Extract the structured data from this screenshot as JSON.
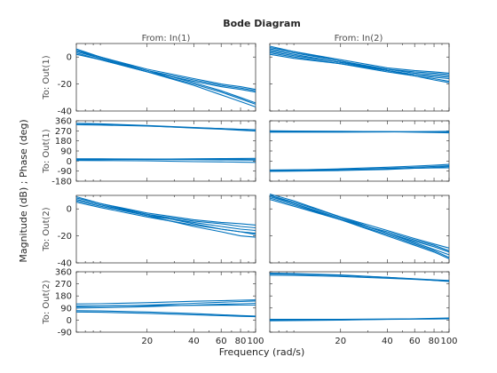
{
  "chart_data": {
    "type": "line",
    "title": "Bode Diagram",
    "xlabel": "Frequency  (rad/s)",
    "ylabel": "Magnitude (dB) ; Phase (deg)",
    "x_scale": "log",
    "xlim": [
      7,
      100
    ],
    "x_ticks": [
      20,
      40,
      60,
      80,
      100
    ],
    "x_tick_labels": [
      "20",
      "40",
      "60",
      "80",
      "100"
    ],
    "column_titles": [
      "From: In(1)",
      "From: In(2)"
    ],
    "row_titles": [
      "To: Out(1)",
      "To: Out(1)",
      "To: Out(2)",
      "To: Out(2)"
    ],
    "line_color": "#0072bd",
    "rows": [
      {
        "kind": "magnitude",
        "ylim": [
          -40,
          10
        ],
        "y_ticks": [
          0,
          -20,
          -40
        ],
        "y_tick_labels": [
          "0",
          "-20",
          "-40"
        ],
        "panels": [
          {
            "x": [
              7,
              10,
              20,
              40,
              60,
              80,
              100
            ],
            "series": [
              {
                "values": [
                  5,
                  0,
                  -9,
                  -16,
                  -20,
                  -22,
                  -24
                ]
              },
              {
                "values": [
                  4,
                  -1,
                  -10,
                  -17,
                  -21,
                  -23,
                  -25
                ]
              },
              {
                "values": [
                  6,
                  0,
                  -10,
                  -19,
                  -25,
                  -30,
                  -34
                ]
              },
              {
                "values": [
                  3,
                  -2,
                  -11,
                  -20,
                  -26,
                  -31,
                  -35
                ]
              },
              {
                "values": [
                  5,
                  -1,
                  -11,
                  -21,
                  -28,
                  -33,
                  -37
                ]
              },
              {
                "values": [
                  2,
                  -2,
                  -11,
                  -18,
                  -22,
                  -24,
                  -26
                ]
              }
            ]
          },
          {
            "x": [
              7,
              10,
              20,
              40,
              60,
              80,
              100
            ],
            "series": [
              {
                "values": [
                  7,
                  4,
                  -2,
                  -8,
                  -10,
                  -11,
                  -12
                ]
              },
              {
                "values": [
                  6,
                  3,
                  -3,
                  -9,
                  -11,
                  -12,
                  -13
                ]
              },
              {
                "values": [
                  5,
                  2,
                  -4,
                  -9,
                  -12,
                  -13,
                  -14
                ]
              },
              {
                "values": [
                  4,
                  1,
                  -4,
                  -10,
                  -13,
                  -15,
                  -16
                ]
              },
              {
                "values": [
                  3,
                  0,
                  -5,
                  -11,
                  -14,
                  -16,
                  -18
                ]
              },
              {
                "values": [
                  8,
                  4,
                  -3,
                  -10,
                  -14,
                  -17,
                  -19
                ]
              },
              {
                "values": [
                  2,
                  -1,
                  -5,
                  -10,
                  -13,
                  -14,
                  -15
                ]
              }
            ]
          }
        ]
      },
      {
        "kind": "phase",
        "ylim": [
          -180,
          360
        ],
        "y_ticks": [
          360,
          270,
          180,
          90,
          0,
          -90,
          -180
        ],
        "y_tick_labels": [
          "360",
          "270",
          "180",
          "90",
          "0",
          "-90",
          "-180"
        ],
        "panels": [
          {
            "x": [
              7,
              10,
              20,
              40,
              60,
              80,
              100
            ],
            "series": [
              {
                "values": [
                  335,
                  330,
                  315,
                  295,
                  285,
                  275,
                  268
                ]
              },
              {
                "values": [
                  325,
                  322,
                  312,
                  298,
                  290,
                  284,
                  280
                ]
              },
              {
                "values": [
                  338,
                  333,
                  318,
                  300,
                  290,
                  283,
                  278
                ]
              },
              {
                "values": [
                  20,
                  20,
                  18,
                  16,
                  15,
                  14,
                  13
                ]
              },
              {
                "values": [
                  10,
                  12,
                  16,
                  20,
                  22,
                  23,
                  24
                ]
              },
              {
                "values": [
                  5,
                  4,
                  2,
                  -5,
                  -8,
                  -10,
                  -12
                ]
              },
              {
                "values": [
                  15,
                  15,
                  14,
                  12,
                  10,
                  9,
                  8
                ]
              }
            ]
          },
          {
            "x": [
              7,
              10,
              20,
              40,
              60,
              80,
              100
            ],
            "series": [
              {
                "values": [
                  265,
                  265,
                  264,
                  263,
                  262,
                  262,
                  262
                ]
              },
              {
                "values": [
                  258,
                  258,
                  258,
                  260,
                  262,
                  264,
                  266
                ]
              },
              {
                "values": [
                  270,
                  269,
                  266,
                  262,
                  258,
                  255,
                  252
                ]
              },
              {
                "values": [
                  -85,
                  -80,
                  -70,
                  -55,
                  -45,
                  -38,
                  -30
                ]
              },
              {
                "values": [
                  -90,
                  -88,
                  -80,
                  -65,
                  -55,
                  -48,
                  -42
                ]
              },
              {
                "values": [
                  -92,
                  -90,
                  -85,
                  -75,
                  -65,
                  -58,
                  -50
                ]
              },
              {
                "values": [
                  -80,
                  -78,
                  -75,
                  -70,
                  -65,
                  -62,
                  -60
                ]
              }
            ]
          }
        ]
      },
      {
        "kind": "magnitude",
        "ylim": [
          -40,
          10
        ],
        "y_ticks": [
          0,
          -20,
          -40
        ],
        "y_tick_labels": [
          "0",
          "-20",
          "-40"
        ],
        "panels": [
          {
            "x": [
              7,
              10,
              20,
              40,
              60,
              80,
              100
            ],
            "series": [
              {
                "values": [
                  8,
                  4,
                  -3,
                  -8,
                  -10,
                  -11,
                  -12
                ]
              },
              {
                "values": [
                  7,
                  3,
                  -4,
                  -9,
                  -11,
                  -13,
                  -14
                ]
              },
              {
                "values": [
                  6,
                  2,
                  -5,
                  -10,
                  -13,
                  -15,
                  -16
                ]
              },
              {
                "values": [
                  9,
                  4,
                  -4,
                  -11,
                  -15,
                  -17,
                  -19
                ]
              },
              {
                "values": [
                  5,
                  1,
                  -6,
                  -12,
                  -15,
                  -17,
                  -18
                ]
              },
              {
                "values": [
                  7,
                  3,
                  -5,
                  -13,
                  -17,
                  -20,
                  -21
                ]
              }
            ]
          },
          {
            "x": [
              7,
              10,
              20,
              40,
              60,
              80,
              100
            ],
            "series": [
              {
                "values": [
                  10,
                  5,
                  -6,
                  -16,
                  -22,
                  -26,
                  -29
                ]
              },
              {
                "values": [
                  9,
                  4,
                  -7,
                  -18,
                  -24,
                  -28,
                  -32
                ]
              },
              {
                "values": [
                  11,
                  6,
                  -6,
                  -18,
                  -25,
                  -30,
                  -34
                ]
              },
              {
                "values": [
                  8,
                  3,
                  -8,
                  -19,
                  -26,
                  -31,
                  -36
                ]
              },
              {
                "values": [
                  7,
                  2,
                  -8,
                  -17,
                  -23,
                  -27,
                  -31
                ]
              },
              {
                "values": [
                  10,
                  4,
                  -8,
                  -20,
                  -27,
                  -32,
                  -37
                ]
              }
            ]
          }
        ]
      },
      {
        "kind": "phase",
        "ylim": [
          -90,
          360
        ],
        "y_ticks": [
          360,
          270,
          180,
          90,
          0,
          -90
        ],
        "y_tick_labels": [
          "360",
          "270",
          "180",
          "90",
          "0",
          "-90"
        ],
        "panels": [
          {
            "x": [
              7,
              10,
              20,
              40,
              60,
              80,
              100
            ],
            "series": [
              {
                "values": [
                  120,
                  122,
                  130,
                  140,
                  145,
                  148,
                  150
                ]
              },
              {
                "values": [
                  100,
                  103,
                  112,
                  125,
                  133,
                  138,
                  142
                ]
              },
              {
                "values": [
                  90,
                  92,
                  100,
                  112,
                  118,
                  122,
                  125
                ]
              },
              {
                "values": [
                  105,
                  106,
                  108,
                  110,
                  111,
                  112,
                  112
                ]
              },
              {
                "values": [
                  60,
                  58,
                  50,
                  40,
                  33,
                  28,
                  25
                ]
              },
              {
                "values": [
                  70,
                  68,
                  60,
                  48,
                  40,
                  34,
                  30
                ]
              }
            ]
          },
          {
            "x": [
              7,
              10,
              20,
              40,
              60,
              80,
              100
            ],
            "series": [
              {
                "values": [
                  345,
                  342,
                  333,
                  318,
                  308,
                  300,
                  295
                ]
              },
              {
                "values": [
                  335,
                  333,
                  325,
                  312,
                  303,
                  296,
                  290
                ]
              },
              {
                "values": [
                  350,
                  347,
                  336,
                  318,
                  306,
                  296,
                  288
                ]
              },
              {
                "values": [
                  5,
                  5,
                  6,
                  8,
                  9,
                  10,
                  11
                ]
              },
              {
                "values": [
                  -5,
                  -4,
                  0,
                  6,
                  10,
                  13,
                  15
                ]
              },
              {
                "values": [
                  0,
                  0,
                  2,
                  5,
                  7,
                  8,
                  9
                ]
              }
            ]
          }
        ]
      }
    ]
  }
}
